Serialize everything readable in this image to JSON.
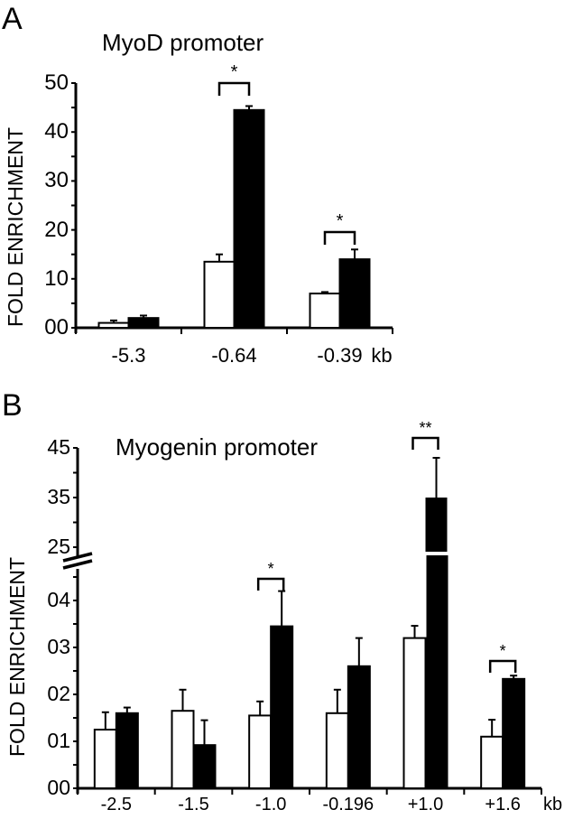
{
  "chart_data": [
    {
      "panel": "A",
      "type": "bar",
      "title": "MyoD promoter",
      "xlabel": "kb",
      "ylabel": "FOLD ENRICHMENT",
      "ylim": [
        0,
        50
      ],
      "yticks": [
        "00",
        "10",
        "20",
        "30",
        "40",
        "50"
      ],
      "categories": [
        "-5.3",
        "-0.64",
        "-0.39"
      ],
      "series": [
        {
          "name": "white",
          "color": "#ffffff",
          "values": [
            1.0,
            13.5,
            7.0
          ],
          "errors": [
            0.5,
            1.5,
            0.3
          ]
        },
        {
          "name": "black",
          "color": "#000000",
          "values": [
            2.0,
            44.5,
            14.0
          ],
          "errors": [
            0.5,
            0.8,
            2.0
          ]
        }
      ],
      "significance": [
        {
          "category": "-0.64",
          "label": "*"
        },
        {
          "category": "-0.39",
          "label": "*"
        }
      ]
    },
    {
      "panel": "B",
      "type": "bar",
      "title": "Myogenin promoter",
      "xlabel": "kb",
      "ylabel": "FOLD ENRICHMENT",
      "axis_break": true,
      "ylim_lower": [
        0,
        4.5
      ],
      "ylim_upper": [
        25,
        45
      ],
      "yticks_lower": [
        "00",
        "01",
        "02",
        "03",
        "04"
      ],
      "yticks_upper": [
        "25",
        "35",
        "45"
      ],
      "categories": [
        "-2.5",
        "-1.5",
        "-1.0",
        "-0.196",
        "+1.0",
        "+1.6"
      ],
      "series": [
        {
          "name": "white",
          "color": "#ffffff",
          "values": [
            1.25,
            1.65,
            1.55,
            1.6,
            3.2,
            1.1
          ],
          "errors": [
            0.37,
            0.45,
            0.3,
            0.5,
            0.26,
            0.36
          ]
        },
        {
          "name": "black",
          "color": "#000000",
          "values": [
            1.6,
            0.92,
            3.45,
            2.6,
            35,
            2.33
          ],
          "errors": [
            0.12,
            0.53,
            0.75,
            0.6,
            8,
            0.07
          ]
        }
      ],
      "significance": [
        {
          "category": "-1.0",
          "label": "*"
        },
        {
          "category": "+1.0",
          "label": "**"
        },
        {
          "category": "+1.6",
          "label": "*"
        }
      ]
    }
  ],
  "labels": {
    "panel_a": "A",
    "panel_b": "B",
    "title_a": "MyoD promoter",
    "title_b": "Myogenin promoter",
    "ylabel": "FOLD ENRICHMENT",
    "unit": "kb"
  }
}
